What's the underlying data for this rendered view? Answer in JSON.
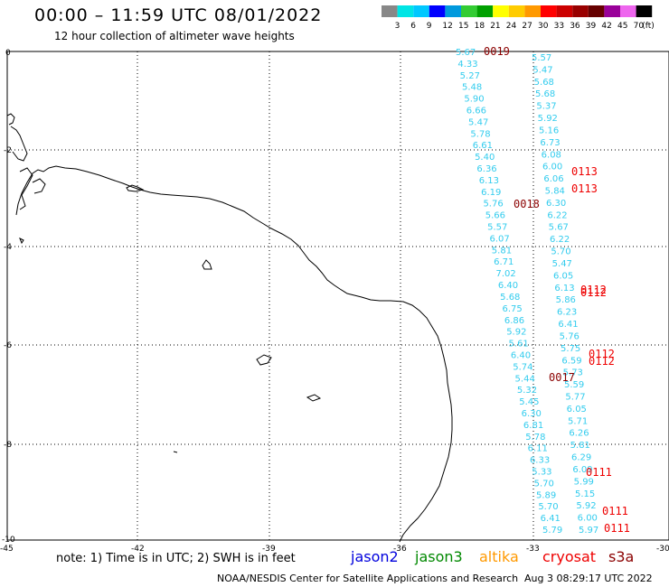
{
  "header": {
    "title": "00:00 – 11:59 UTC 08/01/2022",
    "subtitle": "12 hour collection of altimeter wave heights"
  },
  "legend": {
    "colors": [
      "#888888",
      "#00e5e5",
      "#00c8ff",
      "#0000ff",
      "#0099dd",
      "#33cc33",
      "#00a000",
      "#ffff00",
      "#ffcc00",
      "#ff9900",
      "#ff0000",
      "#cc0000",
      "#990000",
      "#660000",
      "#990099",
      "#ee66ee",
      "#000000"
    ],
    "labels": [
      "3",
      "6",
      "9",
      "12",
      "15",
      "18",
      "21",
      "24",
      "27",
      "30",
      "33",
      "36",
      "39",
      "42",
      "45",
      "70",
      "(ft)"
    ]
  },
  "axes": {
    "x_ticks": [
      "-45",
      "-42",
      "-39",
      "-36",
      "-33",
      "-30"
    ],
    "y_ticks": [
      "0",
      "-2",
      "-4",
      "-6",
      "-8",
      "-10"
    ]
  },
  "colors": {
    "track": "#33ccee",
    "time_a": "#8b0000",
    "time_b": "#ee0000"
  },
  "track_values": [
    [
      "5.67",
      "4.33",
      "5.27",
      "5.48",
      "5.90",
      "6.66",
      "5.47",
      "5.78",
      "6.61",
      "5.40",
      "6.36",
      "6.13",
      "6.19",
      "5.76",
      "5.66",
      "5.57",
      "6.07",
      "5.81",
      "6.71",
      "7.02",
      "6.40",
      "5.68",
      "6.75",
      "6.86",
      "5.92",
      "5.61",
      "6.40",
      "5.74",
      "5.44",
      "5.32",
      "5.45",
      "6.30",
      "6.81",
      "5.78",
      "6.11",
      "6.33",
      "5.33",
      "5.70",
      "5.89",
      "5.70",
      "6.41",
      "5.79"
    ],
    [
      "5.57",
      "5.47",
      "5.68",
      "5.68",
      "5.37",
      "5.92",
      "5.16",
      "6.73",
      "6.08",
      "6.00",
      "6.06",
      "5.84",
      "6.30",
      "6.22",
      "5.67",
      "6.22",
      "5.70",
      "5.47",
      "6.05",
      "6.13",
      "5.86",
      "6.23",
      "6.41",
      "5.76",
      "5.75",
      "6.59",
      "5.73",
      "5.59",
      "5.77",
      "6.05",
      "5.71",
      "6.26",
      "5.81",
      "6.29",
      "6.09",
      "5.99",
      "5.15",
      "5.92",
      "6.00",
      "5.97"
    ]
  ],
  "time_labels": {
    "t0019": "0019",
    "t0018": "0018",
    "t0017": "0017",
    "t0113a": "0113",
    "t0113b": "0113",
    "t0112a": "0112",
    "t0112b": "0112",
    "t0112c": "0112",
    "t0112d": "0112",
    "t0111a": "0111",
    "t0111b": "0111",
    "t0111c": "0111"
  },
  "footer": {
    "note": "note:  1) Time is in UTC;  2) SWH is in feet",
    "satellites": [
      {
        "name": "jason2",
        "color": "#0000dd"
      },
      {
        "name": "jason3",
        "color": "#008800"
      },
      {
        "name": "altika",
        "color": "#ff9900"
      },
      {
        "name": "cryosat",
        "color": "#ee0000"
      },
      {
        "name": "s3a",
        "color": "#8b0000"
      }
    ],
    "credit": "NOAA/NESDIS Center for Satellite Applications and Research",
    "timestamp": "Aug  3 08:29:17 UTC 2022"
  }
}
